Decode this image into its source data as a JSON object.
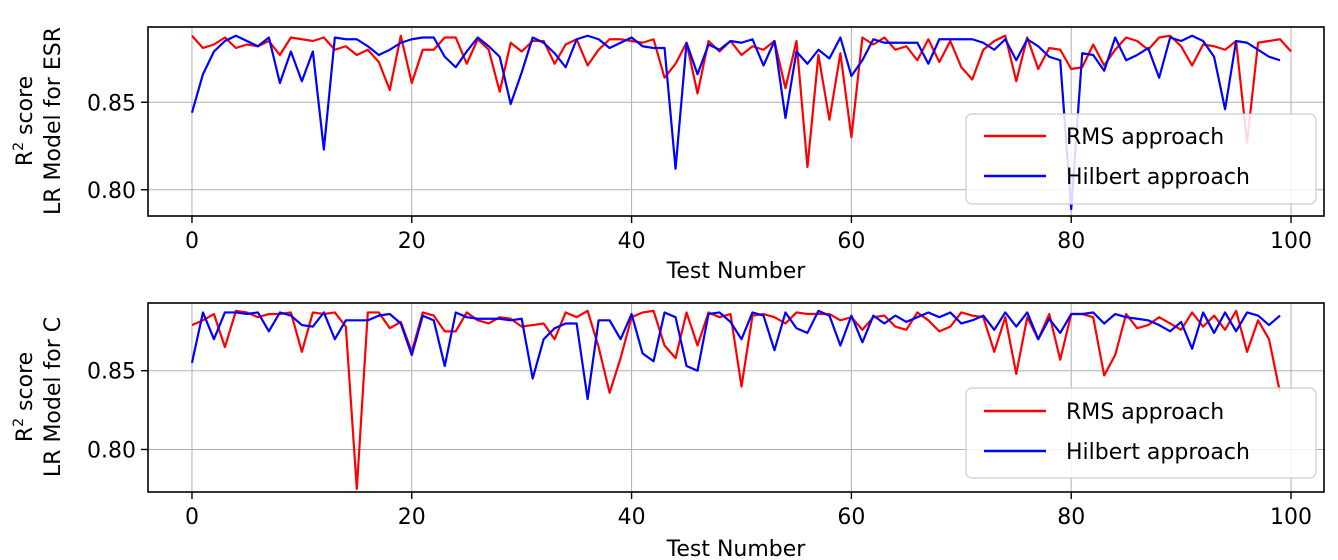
{
  "chart_data": [
    {
      "type": "line",
      "xlabel": "Test Number",
      "ylabel_line1": "R",
      "ylabel_sup": "2",
      "ylabel_line1_rest": " score",
      "ylabel_line2": "LR Model for ESR",
      "xlim": [
        -4,
        103
      ],
      "ylim": [
        0.785,
        0.893
      ],
      "xticks": [
        0,
        20,
        40,
        60,
        80,
        100
      ],
      "xtick_labels": [
        "0",
        "20",
        "40",
        "60",
        "80",
        "100"
      ],
      "yticks": [
        0.8,
        0.85
      ],
      "ytick_labels": [
        "0.80",
        "0.85"
      ],
      "grid": true,
      "legend_position": "lower-right",
      "series": [
        {
          "name": "RMS approach",
          "color": "#ff0000",
          "values": [
            0.888,
            0.881,
            0.883,
            0.887,
            0.881,
            0.883,
            0.882,
            0.885,
            0.877,
            0.887,
            0.886,
            0.885,
            0.887,
            0.88,
            0.882,
            0.877,
            0.88,
            0.873,
            0.857,
            0.888,
            0.861,
            0.88,
            0.88,
            0.887,
            0.887,
            0.872,
            0.886,
            0.88,
            0.856,
            0.884,
            0.879,
            0.885,
            0.885,
            0.872,
            0.883,
            0.886,
            0.871,
            0.88,
            0.886,
            0.886,
            0.885,
            0.884,
            0.886,
            0.864,
            0.872,
            0.884,
            0.855,
            0.885,
            0.879,
            0.885,
            0.877,
            0.882,
            0.88,
            0.885,
            0.858,
            0.885,
            0.813,
            0.877,
            0.84,
            0.878,
            0.83,
            0.887,
            0.883,
            0.887,
            0.88,
            0.882,
            0.874,
            0.886,
            0.873,
            0.885,
            0.87,
            0.863,
            0.88,
            0.885,
            0.888,
            0.862,
            0.887,
            0.869,
            0.881,
            0.88,
            0.869,
            0.87,
            0.883,
            0.871,
            0.88,
            0.887,
            0.885,
            0.88,
            0.887,
            0.888,
            0.882,
            0.871,
            0.883,
            0.882,
            0.88,
            0.885,
            0.827,
            0.884,
            0.885,
            0.886,
            0.879
          ]
        },
        {
          "name": "Hilbert approach",
          "color": "#0000ff",
          "values": [
            0.844,
            0.866,
            0.879,
            0.885,
            0.888,
            0.885,
            0.882,
            0.887,
            0.861,
            0.879,
            0.862,
            0.879,
            0.823,
            0.887,
            0.886,
            0.886,
            0.882,
            0.877,
            0.88,
            0.884,
            0.886,
            0.887,
            0.887,
            0.876,
            0.87,
            0.879,
            0.887,
            0.882,
            0.876,
            0.849,
            0.867,
            0.887,
            0.884,
            0.878,
            0.87,
            0.886,
            0.888,
            0.886,
            0.881,
            0.884,
            0.887,
            0.882,
            0.881,
            0.881,
            0.812,
            0.884,
            0.866,
            0.883,
            0.88,
            0.885,
            0.884,
            0.886,
            0.871,
            0.885,
            0.841,
            0.879,
            0.872,
            0.88,
            0.875,
            0.887,
            0.865,
            0.874,
            0.886,
            0.884,
            0.884,
            0.884,
            0.884,
            0.872,
            0.886,
            0.886,
            0.886,
            0.886,
            0.884,
            0.88,
            0.886,
            0.874,
            0.886,
            0.882,
            0.876,
            0.874,
            0.789,
            0.878,
            0.877,
            0.868,
            0.887,
            0.874,
            0.877,
            0.881,
            0.864,
            0.887,
            0.885,
            0.888,
            0.885,
            0.876,
            0.846,
            0.885,
            0.884,
            0.88,
            0.876,
            0.874
          ]
        }
      ]
    },
    {
      "type": "line",
      "xlabel": "Test Number",
      "ylabel_line1": "R",
      "ylabel_sup": "2",
      "ylabel_line1_rest": " score",
      "ylabel_line2": "LR Model for C",
      "xlim": [
        -4,
        103
      ],
      "ylim": [
        0.773,
        0.893
      ],
      "xticks": [
        0,
        20,
        40,
        60,
        80,
        100
      ],
      "xtick_labels": [
        "0",
        "20",
        "40",
        "60",
        "80",
        "100"
      ],
      "yticks": [
        0.8,
        0.85
      ],
      "ytick_labels": [
        "0.80",
        "0.85"
      ],
      "grid": true,
      "legend_position": "lower-right",
      "series": [
        {
          "name": "RMS approach",
          "color": "#ff0000",
          "values": [
            0.879,
            0.882,
            0.886,
            0.865,
            0.888,
            0.887,
            0.884,
            0.886,
            0.886,
            0.887,
            0.862,
            0.887,
            0.886,
            0.887,
            0.878,
            0.775,
            0.887,
            0.887,
            0.877,
            0.881,
            0.862,
            0.887,
            0.885,
            0.875,
            0.875,
            0.887,
            0.882,
            0.88,
            0.884,
            0.883,
            0.878,
            0.879,
            0.88,
            0.87,
            0.887,
            0.884,
            0.888,
            0.865,
            0.836,
            0.858,
            0.884,
            0.887,
            0.888,
            0.866,
            0.858,
            0.887,
            0.866,
            0.887,
            0.884,
            0.886,
            0.84,
            0.885,
            0.886,
            0.884,
            0.88,
            0.887,
            0.886,
            0.886,
            0.886,
            0.882,
            0.884,
            0.876,
            0.884,
            0.885,
            0.878,
            0.876,
            0.887,
            0.882,
            0.875,
            0.878,
            0.887,
            0.885,
            0.884,
            0.862,
            0.884,
            0.848,
            0.884,
            0.87,
            0.886,
            0.857,
            0.886,
            0.886,
            0.884,
            0.847,
            0.86,
            0.886,
            0.877,
            0.879,
            0.884,
            0.88,
            0.876,
            0.887,
            0.878,
            0.885,
            0.876,
            0.888,
            0.862,
            0.882,
            0.87,
            0.836
          ]
        },
        {
          "name": "Hilbert approach",
          "color": "#0000ff",
          "values": [
            0.855,
            0.887,
            0.87,
            0.887,
            0.887,
            0.886,
            0.887,
            0.875,
            0.887,
            0.885,
            0.879,
            0.878,
            0.887,
            0.87,
            0.882,
            0.882,
            0.882,
            0.885,
            0.886,
            0.88,
            0.86,
            0.885,
            0.882,
            0.853,
            0.887,
            0.884,
            0.883,
            0.883,
            0.883,
            0.882,
            0.883,
            0.845,
            0.87,
            0.877,
            0.88,
            0.88,
            0.832,
            0.882,
            0.882,
            0.87,
            0.886,
            0.861,
            0.856,
            0.887,
            0.884,
            0.853,
            0.85,
            0.886,
            0.887,
            0.881,
            0.87,
            0.887,
            0.885,
            0.863,
            0.887,
            0.877,
            0.874,
            0.888,
            0.885,
            0.866,
            0.885,
            0.868,
            0.885,
            0.88,
            0.885,
            0.881,
            0.884,
            0.887,
            0.884,
            0.887,
            0.88,
            0.882,
            0.885,
            0.876,
            0.887,
            0.878,
            0.887,
            0.87,
            0.883,
            0.874,
            0.886,
            0.886,
            0.887,
            0.88,
            0.886,
            0.884,
            0.883,
            0.882,
            0.879,
            0.875,
            0.881,
            0.864,
            0.887,
            0.874,
            0.887,
            0.875,
            0.887,
            0.885,
            0.879,
            0.885
          ]
        }
      ]
    }
  ]
}
